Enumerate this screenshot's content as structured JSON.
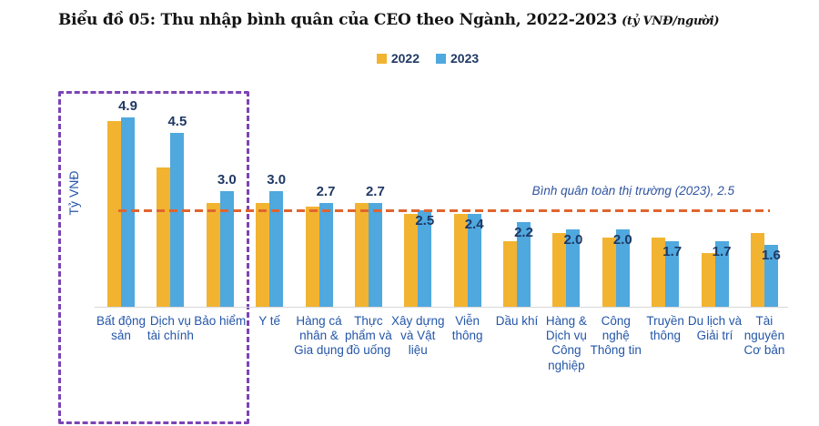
{
  "title": {
    "main": "Biểu đồ 05: Thu nhập bình quân của CEO theo Ngành, 2022-2023",
    "unit_note": "(tỷ VNĐ/người)"
  },
  "legend": [
    {
      "label": "2022",
      "color": "#F2B331"
    },
    {
      "label": "2023",
      "color": "#4FA8DE"
    }
  ],
  "y_axis_label": "Tỷ VNĐ",
  "highlight_box": {
    "categories_covered": [
      "Bất động sản",
      "Dịch vụ tài chính",
      "Bảo hiểm"
    ],
    "border_color": "#7B44B5"
  },
  "colors": {
    "bar_2022": "#F2B331",
    "bar_2023": "#4FA8DE",
    "reference_line": "#E0652E",
    "data_label_text": "#1F3864",
    "axis_label_text": "#2456A8",
    "annotation_text": "#30549F",
    "highlight_border": "#7B44B5"
  },
  "chart_data": {
    "type": "bar",
    "title": "Biểu đồ 05: Thu nhập bình quân của CEO theo Ngành, 2022-2023 (tỷ VNĐ/người)",
    "ylabel": "Tỷ VNĐ",
    "ylim": [
      0,
      5.2
    ],
    "grid": false,
    "legend_position": "top-center",
    "categories": [
      "Bất động sản",
      "Dịch vụ tài chính",
      "Bảo hiểm",
      "Y tế",
      "Hàng cá nhân & Gia dụng",
      "Thực phẩm và đồ uống",
      "Xây dựng và Vật liệu",
      "Viễn thông",
      "Dầu khí",
      "Hàng & Dịch vụ Công nghiệp",
      "Công nghệ Thông tin",
      "Truyền thông",
      "Du lịch và Giải trí",
      "Tài nguyên Cơ bản"
    ],
    "series": [
      {
        "name": "2022",
        "color": "#F2B331",
        "values": [
          4.8,
          3.6,
          2.7,
          2.7,
          2.6,
          2.7,
          2.4,
          2.4,
          1.7,
          1.9,
          1.8,
          1.8,
          1.4,
          1.9
        ]
      },
      {
        "name": "2023",
        "color": "#4FA8DE",
        "values": [
          4.9,
          4.5,
          3.0,
          3.0,
          2.7,
          2.7,
          2.5,
          2.4,
          2.2,
          2.0,
          2.0,
          1.7,
          1.7,
          1.6
        ]
      }
    ],
    "data_labels": [
      "4.9",
      "4.5",
      "3.0",
      "3.0",
      "2.7",
      "2.7",
      "2.5",
      "2.4",
      "2.2",
      "2.0",
      "2.0",
      "1.7",
      "1.7",
      "1.6"
    ],
    "data_label_positions": [
      "above",
      "above",
      "above",
      "above",
      "above",
      "above",
      "below",
      "below",
      "below",
      "below",
      "below",
      "below",
      "below",
      "below"
    ],
    "reference_line": {
      "value": 2.5,
      "label": "Bình quân toàn thị trường (2023), 2.5",
      "color": "#E0652E",
      "style": "dashed"
    }
  }
}
